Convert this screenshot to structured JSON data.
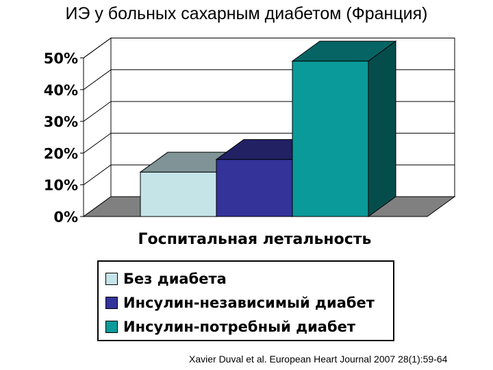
{
  "slide": {
    "title": "ИЭ у больных сахарным диабетом (Франция)",
    "citation": "Xavier Duval et al. European Heart Journal 2007 28(1):59-64"
  },
  "chart_data": {
    "type": "bar",
    "style": "3d",
    "xlabel": "Госпитальная летальность",
    "ylabel": "",
    "ylim": [
      0,
      50
    ],
    "yticks": [
      "0%",
      "10%",
      "20%",
      "30%",
      "40%",
      "50%"
    ],
    "grid": true,
    "legend_position": "bottom",
    "series": [
      {
        "name": "Без диабета",
        "values": [
          14
        ],
        "color": "#c5e4e8"
      },
      {
        "name": "Инсулин-независимый диабет",
        "values": [
          18
        ],
        "color": "#33339a"
      },
      {
        "name": "Инсулин-потребный диабет",
        "values": [
          49
        ],
        "color": "#0a9a9a"
      }
    ]
  }
}
